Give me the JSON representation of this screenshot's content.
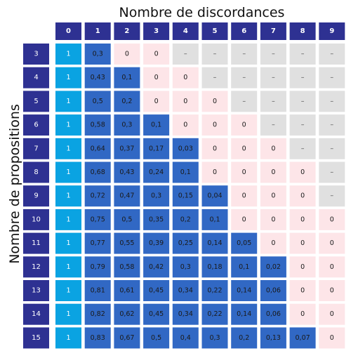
{
  "chart_data": {
    "type": "heatmap",
    "title": "Nombre de discordances",
    "ylabel": "Nombre de propositions",
    "x_categories": [
      "0",
      "1",
      "2",
      "3",
      "4",
      "5",
      "6",
      "7",
      "8",
      "9"
    ],
    "y_categories": [
      "3",
      "4",
      "5",
      "6",
      "7",
      "8",
      "9",
      "10",
      "11",
      "12",
      "13",
      "14",
      "15"
    ],
    "values": [
      [
        "1",
        "0,3",
        "0",
        "0",
        "–",
        "–",
        "–",
        "–",
        "–",
        "–"
      ],
      [
        "1",
        "0,43",
        "0,1",
        "0",
        "0",
        "–",
        "–",
        "–",
        "–",
        "–"
      ],
      [
        "1",
        "0,5",
        "0,2",
        "0",
        "0",
        "0",
        "–",
        "–",
        "–",
        "–"
      ],
      [
        "1",
        "0,58",
        "0,3",
        "0,1",
        "0",
        "0",
        "0",
        "–",
        "–",
        "–"
      ],
      [
        "1",
        "0,64",
        "0,37",
        "0,17",
        "0,03",
        "0",
        "0",
        "0",
        "–",
        "–"
      ],
      [
        "1",
        "0,68",
        "0,43",
        "0,24",
        "0,1",
        "0",
        "0",
        "0",
        "0",
        "–"
      ],
      [
        "1",
        "0,72",
        "0,47",
        "0,3",
        "0,15",
        "0,04",
        "0",
        "0",
        "0",
        "–"
      ],
      [
        "1",
        "0,75",
        "0,5",
        "0,35",
        "0,2",
        "0,1",
        "0",
        "0",
        "0",
        "0"
      ],
      [
        "1",
        "0,77",
        "0,55",
        "0,39",
        "0,25",
        "0,14",
        "0,05",
        "0",
        "0",
        "0"
      ],
      [
        "1",
        "0,79",
        "0,58",
        "0,42",
        "0,3",
        "0,18",
        "0,1",
        "0,02",
        "0",
        "0"
      ],
      [
        "1",
        "0,81",
        "0,61",
        "0,45",
        "0,34",
        "0,22",
        "0,14",
        "0,06",
        "0",
        "0"
      ],
      [
        "1",
        "0,82",
        "0,62",
        "0,45",
        "0,34",
        "0,22",
        "0,14",
        "0,06",
        "0",
        "0"
      ],
      [
        "1",
        "0,83",
        "0,67",
        "0,5",
        "0,4",
        "0,3",
        "0,2",
        "0,13",
        "0,07",
        "0"
      ]
    ],
    "colors": {
      "header": "#2e3192",
      "one": "#0aa3e2",
      "positive": "#3168c4",
      "zero": "#fde5e8",
      "empty": "#e0e0e0",
      "text_light": "#ffffff",
      "text_dark": "#1a1a1a"
    }
  }
}
